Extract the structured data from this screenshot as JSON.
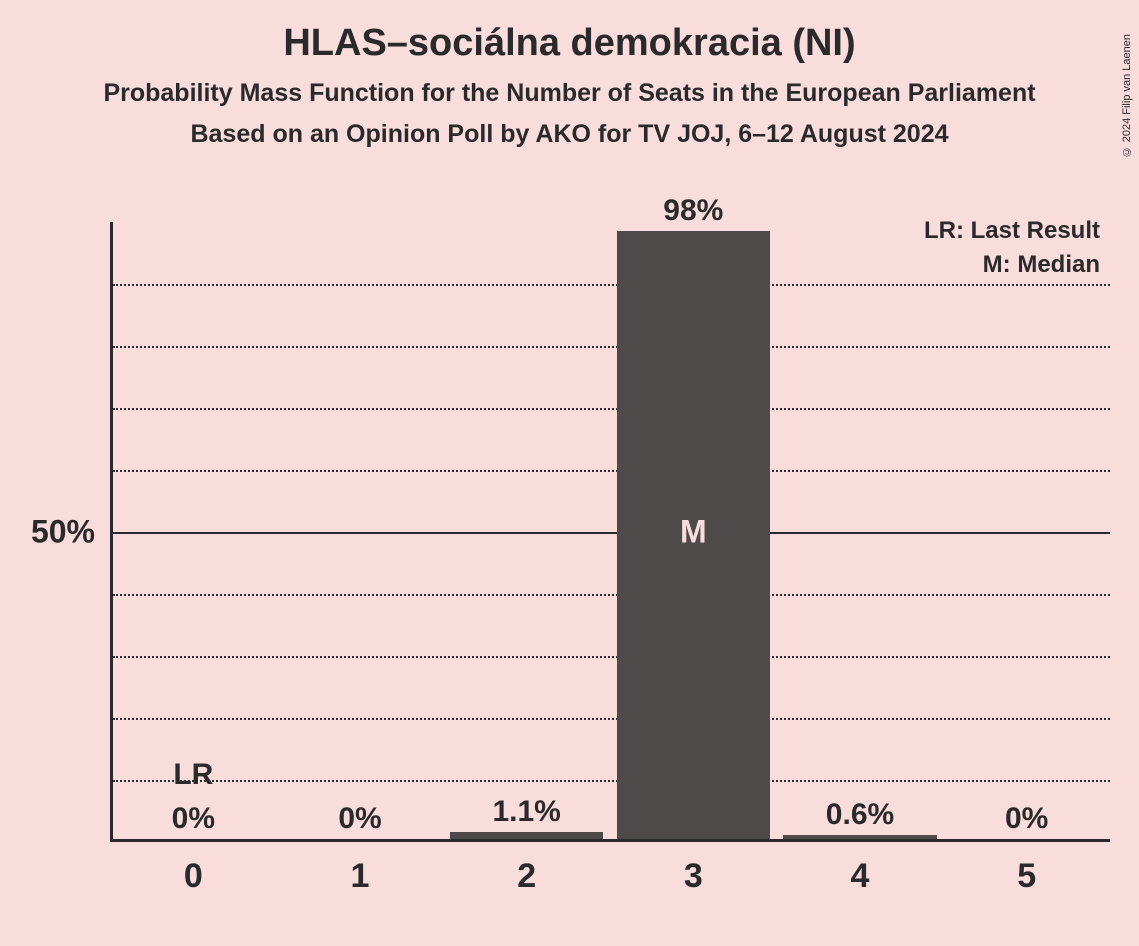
{
  "copyright": "© 2024 Filip van Laenen",
  "title": "HLAS–sociálna demokracia (NI)",
  "subtitle1": "Probability Mass Function for the Number of Seats in the European Parliament",
  "subtitle2": "Based on an Opinion Poll by AKO for TV JOJ, 6–12 August 2024",
  "legend": {
    "lr": "LR: Last Result",
    "m": "M: Median"
  },
  "chart": {
    "type": "bar",
    "background_color": "#f9dcdc",
    "bar_color": "#4e4a4a",
    "axis_color": "#2a2a2a",
    "text_color": "#2a2a2a",
    "m_text_color": "#f9dcdc",
    "ylim": [
      0,
      100
    ],
    "y_major_tick": 50,
    "y_minor_step": 10,
    "y_label_50": "50%",
    "categories": [
      "0",
      "1",
      "2",
      "3",
      "4",
      "5"
    ],
    "values": [
      0,
      0,
      1.1,
      98,
      0.6,
      0
    ],
    "value_labels": [
      "0%",
      "0%",
      "1.1%",
      "98%",
      "0.6%",
      "0%"
    ],
    "lr_index": 0,
    "lr_text": "LR",
    "median_index": 3,
    "median_text": "M",
    "bar_width_ratio": 0.92,
    "title_fontsize": 38,
    "subtitle_fontsize": 25,
    "axis_label_fontsize": 32,
    "bar_label_fontsize": 30,
    "legend_fontsize": 24,
    "xtick_fontsize": 34
  }
}
